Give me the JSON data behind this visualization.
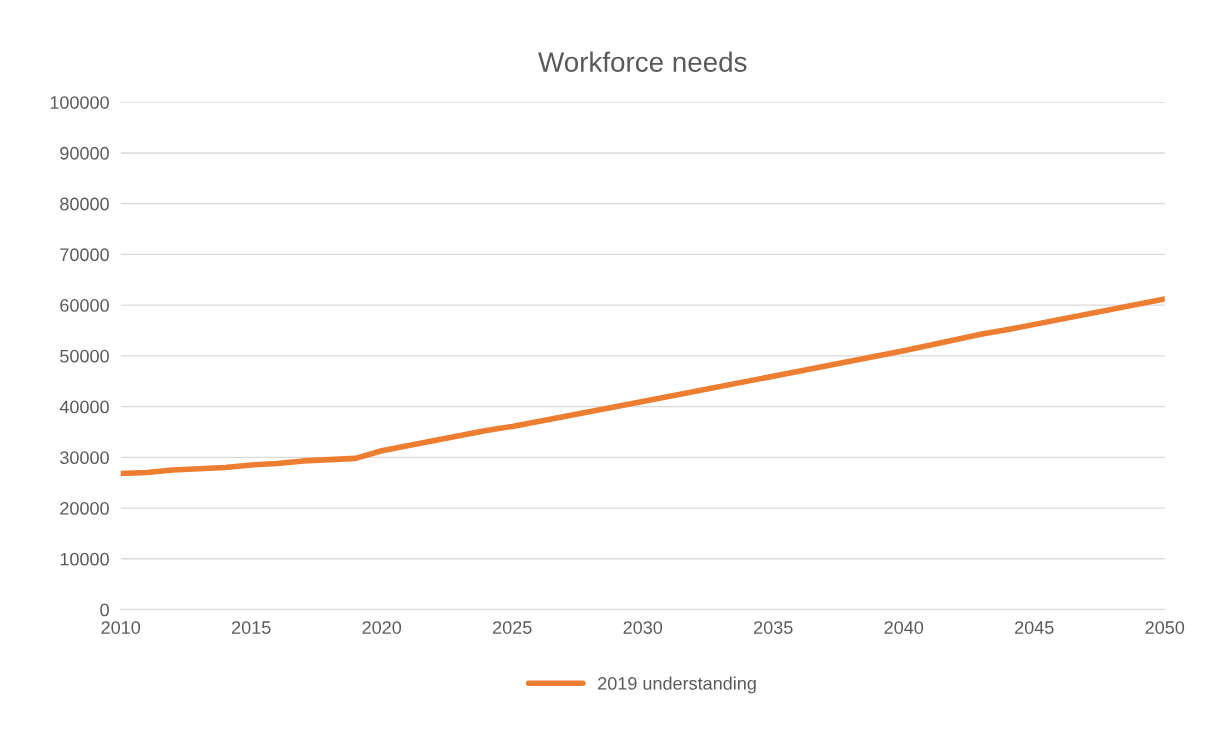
{
  "chart_data": {
    "type": "line",
    "title": "Workforce needs",
    "x": [
      2010,
      2011,
      2012,
      2014,
      2015,
      2016,
      2017,
      2019,
      2020,
      2024,
      2025,
      2030,
      2035,
      2040,
      2043,
      2044,
      2050
    ],
    "series": [
      {
        "name": "2019 understanding",
        "color": "#ed7d31",
        "values": [
          26800,
          27000,
          27500,
          28000,
          28500,
          28800,
          29300,
          29800,
          31300,
          35300,
          36100,
          41000,
          46000,
          51000,
          54300,
          55200,
          61200
        ]
      }
    ],
    "xlim": [
      2010,
      2050
    ],
    "xticks": [
      2010,
      2015,
      2020,
      2025,
      2030,
      2035,
      2040,
      2045,
      2050
    ],
    "ylim": [
      0,
      100000
    ],
    "yticks": [
      0,
      10000,
      20000,
      30000,
      40000,
      50000,
      60000,
      70000,
      80000,
      90000,
      100000
    ],
    "grid": "y",
    "legend": "bottom",
    "marker": "none",
    "line_style": "solid"
  }
}
